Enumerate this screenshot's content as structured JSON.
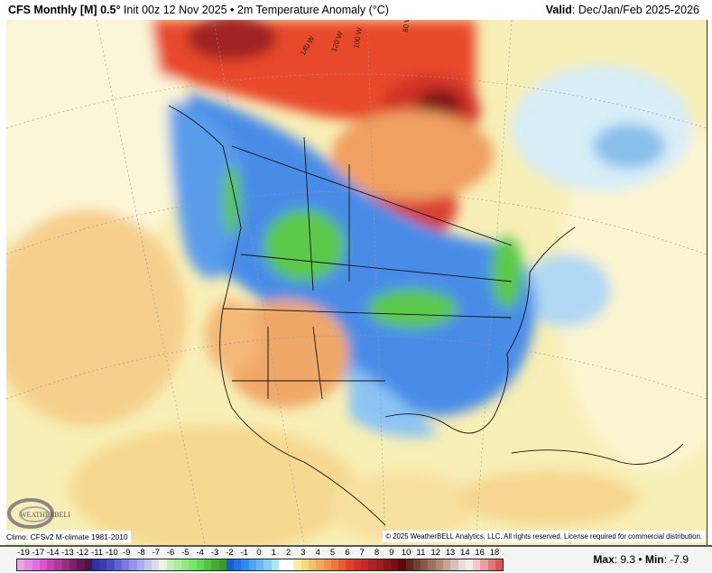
{
  "header": {
    "model": "CFS Monthly [M] 0.5",
    "degree": "°",
    "init": " Init 00z 12 Nov 2025 • 2m Temperature Anomaly (°C)",
    "valid_label": "Valid",
    "valid_value": ": Dec/Jan/Feb 2025-2026"
  },
  "map": {
    "longitude_labels": [
      "140 W",
      "120 W",
      "100 W",
      "80 W"
    ],
    "logo_text": "WeatherBELL",
    "climo": "Climo: CFSv2 M-climate 1981-2010",
    "copyright": "© 2025 WeatherBELL Analytics, LLC. All rights reserved. License required for commercial distribution."
  },
  "legend": {
    "labels": [
      "-19",
      "-17",
      "-14",
      "-13",
      "-12",
      "-11",
      "-10",
      "-9",
      "-8",
      "-7",
      "-6",
      "-5",
      "-4",
      "-3",
      "-2",
      "-1",
      "0",
      "1",
      "2",
      "3",
      "4",
      "5",
      "6",
      "7",
      "8",
      "9",
      "10",
      "11",
      "12",
      "13",
      "14",
      "16",
      "18"
    ],
    "colors": [
      "#eca4e8",
      "#e68ae2",
      "#e070dc",
      "#d856d2",
      "#c444b4",
      "#ac3a9c",
      "#922e84",
      "#7a226c",
      "#621854",
      "#4c1042",
      "#3030a0",
      "#3a3ab4",
      "#4a4ac4",
      "#6464d4",
      "#7c7ce0",
      "#9494e8",
      "#acacf0",
      "#c4c4f2",
      "#dcdce8",
      "#eaf4e0",
      "#c4f0b4",
      "#acec9c",
      "#94e884",
      "#7ce46c",
      "#64d854",
      "#52c444",
      "#42ac34",
      "#3a9a2a",
      "#1a5ad0",
      "#2272e0",
      "#328ae8",
      "#4ea2f0",
      "#6cb6f4",
      "#8ccaf8",
      "#ace6f4",
      "#ffffff",
      "#ffffff",
      "#f8f0a0",
      "#f8d880",
      "#f4c070",
      "#f0aa60",
      "#f09250",
      "#ec7a40",
      "#e85e30",
      "#e04228",
      "#d03228",
      "#c02a28",
      "#aa2424",
      "#9a2020",
      "#881818",
      "#761010",
      "#600808",
      "#5a2a1c",
      "#704030",
      "#885844",
      "#a07060",
      "#b08878",
      "#c8a498",
      "#d8c0b8",
      "#e8e0dc",
      "#f6eaea",
      "#f2c8c8",
      "#e8a0a0",
      "#e07878",
      "#d85858"
    ],
    "max_label": "Max",
    "max_value": ": 9.3 • ",
    "min_label": "Min",
    "min_value": ": -7.9"
  }
}
